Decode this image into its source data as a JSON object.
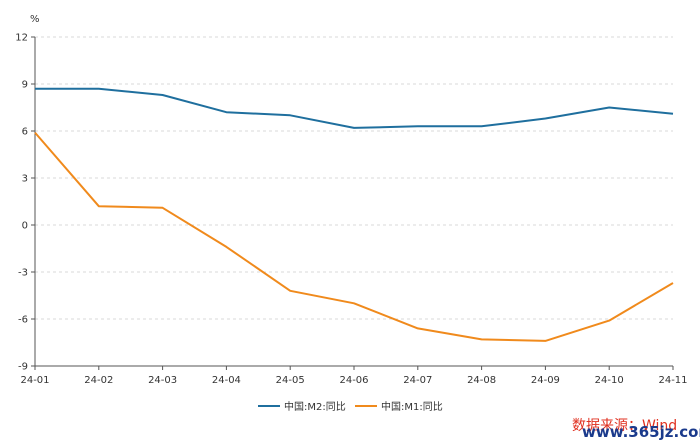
{
  "chart_data": {
    "type": "line",
    "ylabel": "%",
    "ylim": [
      -9,
      12
    ],
    "yticks": [
      12,
      9,
      6,
      3,
      0,
      -3,
      -6,
      -9
    ],
    "categories": [
      "24-01",
      "24-02",
      "24-03",
      "24-04",
      "24-05",
      "24-06",
      "24-07",
      "24-08",
      "24-09",
      "24-10",
      "24-11"
    ],
    "series": [
      {
        "name": "中国:M2:同比",
        "color": "#1f6f9e",
        "values": [
          8.7,
          8.7,
          8.3,
          7.2,
          7.0,
          6.2,
          6.3,
          6.3,
          6.8,
          7.5,
          7.1
        ]
      },
      {
        "name": "中国:M1:同比",
        "color": "#f08a1c",
        "values": [
          5.9,
          1.2,
          1.1,
          -1.4,
          -4.2,
          -5.0,
          -6.6,
          -7.3,
          -7.4,
          -6.1,
          -3.7
        ]
      }
    ],
    "grid": true,
    "legend_position": "bottom"
  },
  "source_label": "数据来源：Wind",
  "watermark": "www.365jz.com"
}
